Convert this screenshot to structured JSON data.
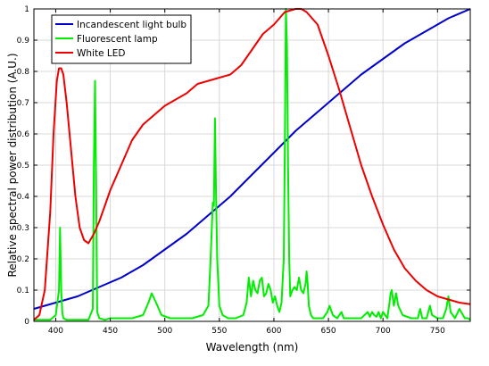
{
  "chart_data": {
    "type": "line",
    "title": "",
    "xlabel": "Wavelength (nm)",
    "ylabel": "Relative spectral power distribution (A.U.)",
    "xlim": [
      380,
      780
    ],
    "ylim": [
      0,
      1
    ],
    "xticks": [
      400,
      450,
      500,
      550,
      600,
      650,
      700,
      750
    ],
    "yticks": [
      0,
      0.1,
      0.2,
      0.3,
      0.4,
      0.5,
      0.6,
      0.7,
      0.8,
      0.9,
      1
    ],
    "grid": true,
    "legend_position": "top-left",
    "series": [
      {
        "name": "Incandescent light bulb",
        "color": "#0000cc",
        "x": [
          380,
          400,
          420,
          440,
          460,
          480,
          500,
          520,
          540,
          560,
          580,
          600,
          620,
          640,
          660,
          680,
          700,
          720,
          740,
          760,
          780
        ],
        "y": [
          0.04,
          0.06,
          0.08,
          0.11,
          0.14,
          0.18,
          0.23,
          0.28,
          0.34,
          0.4,
          0.47,
          0.54,
          0.61,
          0.67,
          0.73,
          0.79,
          0.84,
          0.89,
          0.93,
          0.97,
          1.0
        ]
      },
      {
        "name": "Fluorescent lamp",
        "color": "#00ee00",
        "x": [
          380,
          385,
          390,
          395,
          400,
          403,
          404,
          405,
          406,
          407,
          410,
          415,
          420,
          425,
          430,
          434,
          435,
          436,
          437,
          438,
          440,
          445,
          450,
          460,
          470,
          480,
          485,
          488,
          492,
          497,
          505,
          515,
          525,
          535,
          540,
          542,
          544,
          545,
          546,
          547,
          548,
          550,
          553,
          558,
          565,
          572,
          575,
          577,
          579,
          581,
          583,
          585,
          587,
          589,
          591,
          593,
          595,
          597,
          599,
          601,
          603,
          605,
          607,
          609,
          610,
          611,
          612,
          613,
          614,
          615,
          617,
          619,
          621,
          623,
          625,
          627,
          629,
          630,
          631,
          632,
          634,
          636,
          640,
          645,
          649,
          651,
          654,
          658,
          662,
          664,
          668,
          672,
          680,
          686,
          688,
          690,
          692,
          694,
          696,
          698,
          700,
          704,
          706,
          707,
          708,
          710,
          712,
          714,
          718,
          726,
          732,
          734,
          736,
          740,
          743,
          745,
          750,
          755,
          758,
          760,
          762,
          766,
          770,
          775,
          778,
          780
        ],
        "y": [
          0.005,
          0.005,
          0.005,
          0.005,
          0.02,
          0.1,
          0.3,
          0.1,
          0.03,
          0.01,
          0.005,
          0.005,
          0.005,
          0.005,
          0.005,
          0.04,
          0.5,
          0.77,
          0.45,
          0.03,
          0.01,
          0.005,
          0.01,
          0.01,
          0.01,
          0.02,
          0.06,
          0.09,
          0.06,
          0.02,
          0.01,
          0.01,
          0.01,
          0.02,
          0.05,
          0.2,
          0.38,
          0.37,
          0.65,
          0.39,
          0.2,
          0.05,
          0.02,
          0.01,
          0.01,
          0.02,
          0.06,
          0.14,
          0.08,
          0.13,
          0.1,
          0.09,
          0.13,
          0.14,
          0.08,
          0.09,
          0.12,
          0.1,
          0.06,
          0.08,
          0.05,
          0.03,
          0.06,
          0.2,
          0.55,
          1.0,
          0.88,
          0.5,
          0.2,
          0.08,
          0.1,
          0.11,
          0.1,
          0.14,
          0.1,
          0.09,
          0.12,
          0.16,
          0.12,
          0.05,
          0.02,
          0.01,
          0.01,
          0.01,
          0.03,
          0.05,
          0.02,
          0.01,
          0.03,
          0.01,
          0.01,
          0.01,
          0.01,
          0.03,
          0.015,
          0.03,
          0.02,
          0.015,
          0.03,
          0.01,
          0.03,
          0.01,
          0.06,
          0.09,
          0.1,
          0.05,
          0.09,
          0.05,
          0.02,
          0.01,
          0.01,
          0.04,
          0.01,
          0.01,
          0.05,
          0.02,
          0.01,
          0.01,
          0.04,
          0.08,
          0.03,
          0.01,
          0.04,
          0.01,
          0.01,
          0.005
        ]
      },
      {
        "name": "White LED",
        "color": "#ee0000",
        "x": [
          380,
          385,
          390,
          395,
          398,
          401,
          403,
          405,
          407,
          410,
          414,
          418,
          422,
          426,
          430,
          435,
          440,
          445,
          450,
          460,
          470,
          480,
          490,
          500,
          510,
          520,
          530,
          540,
          550,
          560,
          570,
          580,
          590,
          600,
          610,
          620,
          625,
          630,
          640,
          650,
          660,
          670,
          680,
          690,
          700,
          710,
          720,
          730,
          740,
          750,
          760,
          770,
          780
        ],
        "y": [
          0.005,
          0.02,
          0.1,
          0.35,
          0.6,
          0.77,
          0.81,
          0.81,
          0.79,
          0.7,
          0.55,
          0.4,
          0.3,
          0.26,
          0.25,
          0.28,
          0.32,
          0.37,
          0.42,
          0.5,
          0.58,
          0.63,
          0.66,
          0.69,
          0.71,
          0.73,
          0.76,
          0.77,
          0.78,
          0.79,
          0.82,
          0.87,
          0.92,
          0.95,
          0.99,
          1.0,
          1.0,
          0.99,
          0.95,
          0.85,
          0.74,
          0.62,
          0.5,
          0.4,
          0.31,
          0.23,
          0.17,
          0.13,
          0.1,
          0.08,
          0.07,
          0.06,
          0.055
        ]
      }
    ]
  }
}
